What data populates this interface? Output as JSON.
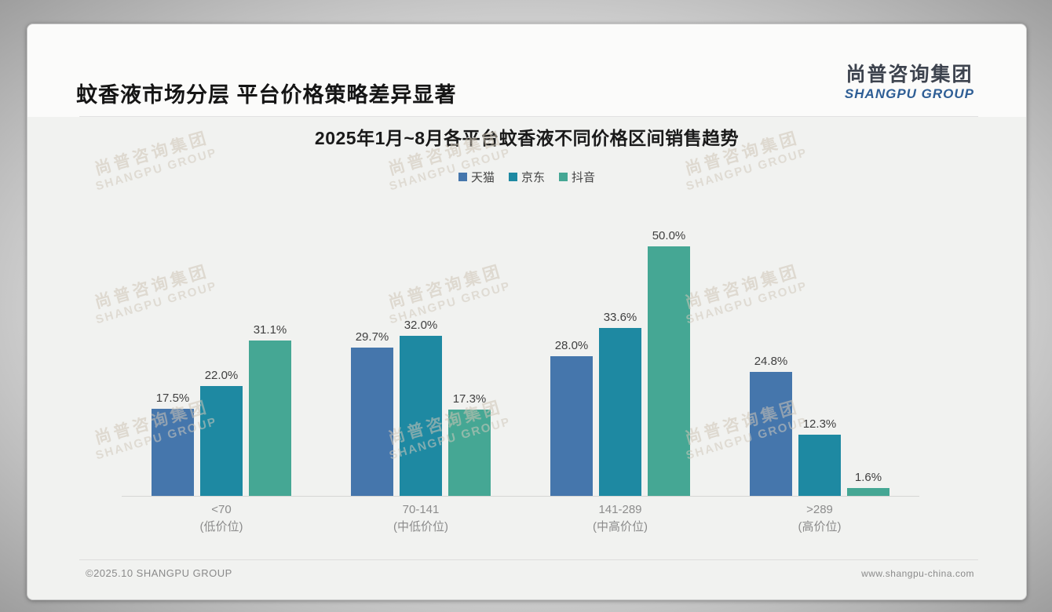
{
  "page": {
    "title": "蚊香液市场分层 平台价格策略差异显著",
    "logo": {
      "cn": "尚普咨询集团",
      "en": "SHANGPU GROUP"
    },
    "watermark": {
      "cn": "尚普咨询集团",
      "en": "SHANGPU GROUP"
    },
    "footer": {
      "left": "©2025.10 SHANGPU GROUP",
      "right": "www.shangpu-china.com"
    }
  },
  "chart_data": {
    "type": "bar",
    "title": "2025年1月~8月各平台蚊香液不同价格区间销售趋势",
    "unit": "%",
    "categories": [
      {
        "range": "<70",
        "tier": "(低价位)"
      },
      {
        "range": "70-141",
        "tier": "(中低价位)"
      },
      {
        "range": "141-289",
        "tier": "(中高价位)"
      },
      {
        "range": ">289",
        "tier": "(高价位)"
      }
    ],
    "series": [
      {
        "name": "天猫",
        "color": "#4576ac",
        "values": [
          17.5,
          29.7,
          28.0,
          24.8
        ]
      },
      {
        "name": "京东",
        "color": "#1e89a2",
        "values": [
          22.0,
          32.0,
          33.6,
          12.3
        ]
      },
      {
        "name": "抖音",
        "color": "#45a794",
        "values": [
          31.1,
          17.3,
          50.0,
          1.6
        ]
      }
    ],
    "ylim": [
      0,
      55
    ],
    "grid": false,
    "legend_position": "top",
    "value_labels": true
  }
}
